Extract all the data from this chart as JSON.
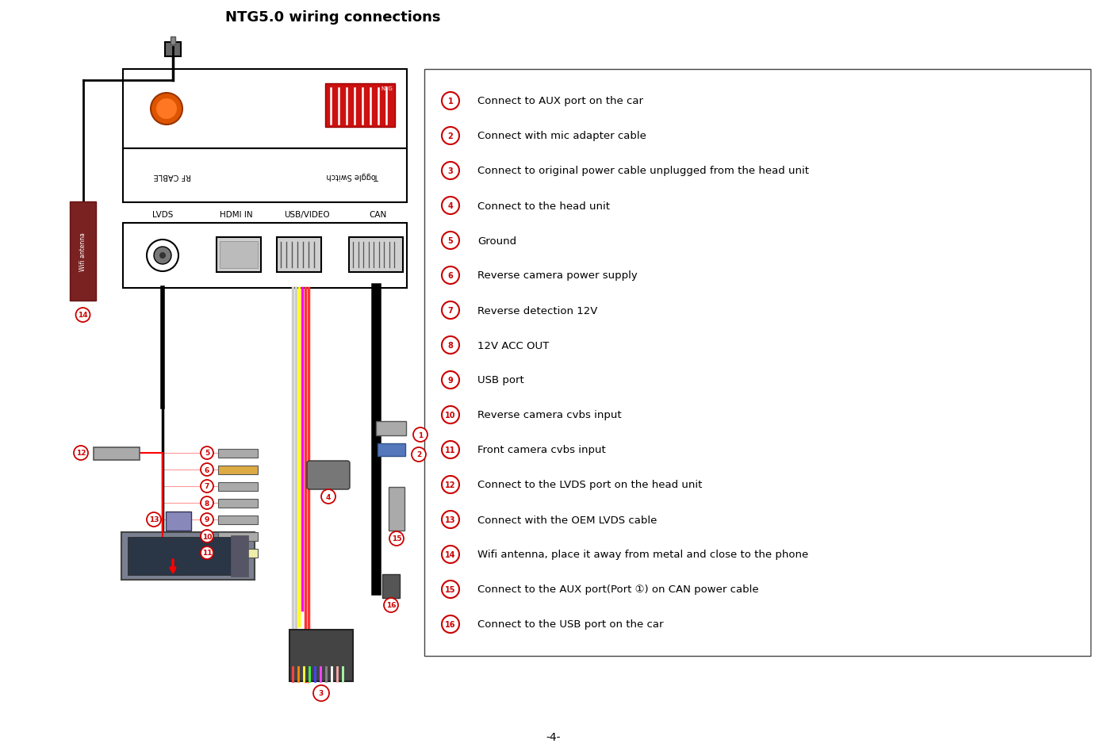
{
  "title": "NTG5.0 wiring connections",
  "title_fontsize": 13,
  "title_fontweight": "bold",
  "page_num": "-4-",
  "legend_items": [
    {
      "num": "1",
      "text": "Connect to AUX port on the car"
    },
    {
      "num": "2",
      "text": "Connect with mic adapter cable"
    },
    {
      "num": "3",
      "text": "Connect to original power cable unplugged from the head unit"
    },
    {
      "num": "4",
      "text": "Connect to the head unit"
    },
    {
      "num": "5",
      "text": "Ground"
    },
    {
      "num": "6",
      "text": "Reverse camera power supply"
    },
    {
      "num": "7",
      "text": "Reverse detection 12V"
    },
    {
      "num": "8",
      "text": "12V ACC OUT"
    },
    {
      "num": "9",
      "text": "USB port"
    },
    {
      "num": "10",
      "text": "Reverse camera cvbs input"
    },
    {
      "num": "11",
      "text": "Front camera cvbs input"
    },
    {
      "num": "12",
      "text": "Connect to the LVDS port on the head unit"
    },
    {
      "num": "13",
      "text": "Connect with the OEM LVDS cable"
    },
    {
      "num": "14",
      "text": "Wifi antenna, place it away from metal and close to the phone"
    },
    {
      "num": "15",
      "text": "Connect to the AUX port(Port ①) on CAN power cable"
    },
    {
      "num": "16",
      "text": "Connect to the USB port on the car"
    }
  ],
  "circle_color": "#cc0000",
  "text_color": "#000000",
  "bg_color": "#ffffff"
}
